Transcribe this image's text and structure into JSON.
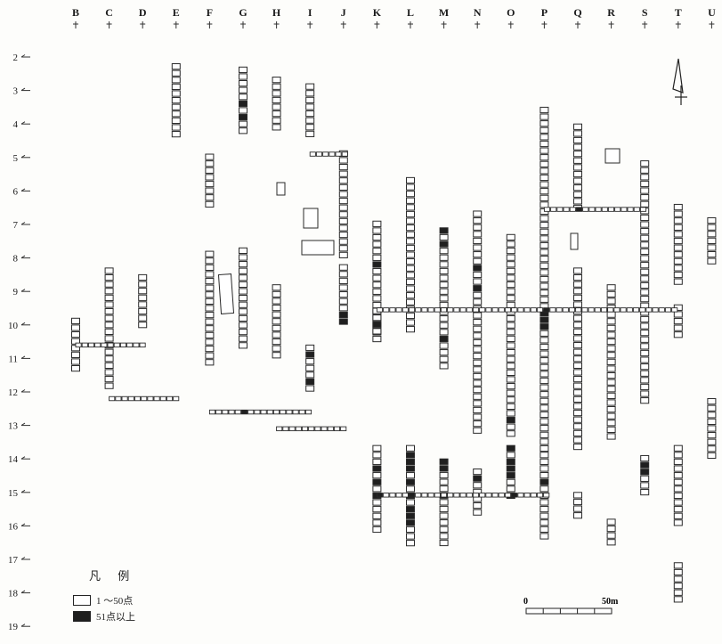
{
  "columns": [
    "B",
    "C",
    "D",
    "E",
    "F",
    "G",
    "H",
    "I",
    "J",
    "K",
    "L",
    "M",
    "N",
    "O",
    "P",
    "Q",
    "R",
    "S",
    "T",
    "U"
  ],
  "rows": [
    "2",
    "3",
    "4",
    "5",
    "6",
    "7",
    "8",
    "9",
    "10",
    "11",
    "12",
    "13",
    "14",
    "15",
    "16",
    "17",
    "18",
    "19"
  ],
  "legend": {
    "title": "凡  例",
    "items": [
      {
        "label": "1 ～50点",
        "style": "light"
      },
      {
        "label": "51点以上",
        "style": "dark"
      }
    ]
  },
  "scale_bar": {
    "start_label": "0",
    "end_label": "50m"
  },
  "north_arrow": "north-arrow",
  "trench_lines": [
    {
      "col": "K",
      "from_row": 6.9,
      "to_row": 10.4,
      "dark_rows": [
        8.1
      ]
    },
    {
      "col": "L",
      "from_row": 5.6,
      "to_row": 10.2,
      "dark_rows": []
    },
    {
      "col": "M",
      "from_row": 7.1,
      "to_row": 11.2,
      "dark_rows": [
        7.2,
        7.5,
        10.4
      ]
    },
    {
      "col": "N",
      "from_row": 6.6,
      "to_row": 13.2,
      "dark_rows": [
        8.2,
        8.4,
        8.9
      ]
    },
    {
      "col": "O",
      "from_row": 7.3,
      "to_row": 13.2,
      "dark_rows": [
        12.8
      ]
    },
    {
      "col": "P",
      "from_row": 3.5,
      "to_row": 13.7,
      "dark_rows": [
        9.6,
        9.8,
        10.1
      ]
    },
    {
      "col": "Q",
      "from_row": 4.0,
      "to_row": 6.5,
      "dark_rows": []
    },
    {
      "col": "Q",
      "from_row": 8.3,
      "to_row": 13.7,
      "dark_rows": []
    },
    {
      "col": "R",
      "from_row": 8.8,
      "to_row": 13.4,
      "dark_rows": []
    },
    {
      "col": "S",
      "from_row": 5.1,
      "to_row": 12.3,
      "dark_rows": []
    },
    {
      "col": "T",
      "from_row": 6.4,
      "to_row": 8.8,
      "dark_rows": []
    },
    {
      "col": "T",
      "from_row": 9.4,
      "to_row": 10.4,
      "dark_rows": []
    },
    {
      "col": "U",
      "from_row": 6.8,
      "to_row": 8.2,
      "dark_rows": []
    },
    {
      "col": "K",
      "from_row": 13.6,
      "to_row": 16.2,
      "dark_rows": [
        14.2,
        14.7,
        15.1
      ]
    },
    {
      "col": "L",
      "from_row": 13.6,
      "to_row": 16.6,
      "dark_rows": [
        13.8,
        14.0,
        14.2,
        14.6,
        15.1,
        15.5,
        15.7,
        15.9
      ]
    },
    {
      "col": "M",
      "from_row": 14.0,
      "to_row": 16.6,
      "dark_rows": [
        14.1,
        14.3,
        15.1
      ]
    },
    {
      "col": "N",
      "from_row": 14.3,
      "to_row": 15.6,
      "dark_rows": [
        14.6
      ]
    },
    {
      "col": "O",
      "from_row": 13.6,
      "to_row": 15.1,
      "dark_rows": [
        13.7,
        14.0,
        14.2,
        14.5,
        15.1
      ]
    },
    {
      "col": "P",
      "from_row": 13.8,
      "to_row": 16.3,
      "dark_rows": [
        14.6
      ]
    },
    {
      "col": "Q",
      "from_row": 15.0,
      "to_row": 15.8,
      "dark_rows": []
    },
    {
      "col": "R",
      "from_row": 15.8,
      "to_row": 16.6,
      "dark_rows": []
    },
    {
      "col": "S",
      "from_row": 13.9,
      "to_row": 15.0,
      "dark_rows": [
        14.1,
        14.3
      ]
    },
    {
      "col": "T",
      "from_row": 13.6,
      "to_row": 15.9,
      "dark_rows": []
    },
    {
      "col": "T",
      "from_row": 17.1,
      "to_row": 18.3,
      "dark_rows": []
    },
    {
      "col": "U",
      "from_row": 12.2,
      "to_row": 13.9,
      "dark_rows": []
    },
    {
      "col": "E",
      "from_row": 2.2,
      "to_row": 4.3,
      "dark_rows": []
    },
    {
      "col": "F",
      "from_row": 4.9,
      "to_row": 6.5,
      "dark_rows": []
    },
    {
      "col": "G",
      "from_row": 2.3,
      "to_row": 4.2,
      "dark_rows": [
        3.3,
        3.8
      ]
    },
    {
      "col": "H",
      "from_row": 2.6,
      "to_row": 4.2,
      "dark_rows": []
    },
    {
      "col": "I",
      "from_row": 2.8,
      "to_row": 4.4,
      "dark_rows": []
    },
    {
      "col": "J",
      "from_row": 4.8,
      "to_row": 7.9,
      "dark_rows": []
    },
    {
      "col": "D",
      "from_row": 8.5,
      "to_row": 10.0,
      "dark_rows": []
    },
    {
      "col": "C",
      "from_row": 8.3,
      "to_row": 11.8,
      "dark_rows": []
    },
    {
      "col": "B",
      "from_row": 9.8,
      "to_row": 11.3,
      "dark_rows": []
    },
    {
      "col": "F",
      "from_row": 7.8,
      "to_row": 11.1,
      "dark_rows": []
    },
    {
      "col": "G",
      "from_row": 7.7,
      "to_row": 10.7,
      "dark_rows": []
    },
    {
      "col": "H",
      "from_row": 8.8,
      "to_row": 11.0,
      "dark_rows": []
    },
    {
      "col": "I",
      "from_row": 10.6,
      "to_row": 11.9,
      "dark_rows": [
        10.8,
        11.7
      ]
    },
    {
      "col": "J",
      "from_row": 8.2,
      "to_row": 9.9,
      "dark_rows": [
        9.6,
        9.8
      ]
    },
    {
      "col": "K",
      "from_row": 9.5,
      "to_row": 10.2,
      "dark_rows": [
        10.0
      ]
    }
  ],
  "cross_lines": [
    {
      "row": 9.55,
      "from_col": "K",
      "to_col": "T",
      "dark_cols": [
        "P"
      ]
    },
    {
      "row": 15.08,
      "from_col": "K",
      "to_col": "P",
      "dark_cols": [
        "K",
        "L",
        "O"
      ]
    },
    {
      "row": 10.6,
      "from_col": "B",
      "to_col": "D",
      "dark_cols": []
    },
    {
      "row": 12.2,
      "from_col": "C",
      "to_col": "E",
      "dark_cols": []
    },
    {
      "row": 12.6,
      "from_col": "F",
      "to_col": "I",
      "dark_cols": [
        "G"
      ]
    },
    {
      "row": 13.1,
      "from_col": "H",
      "to_col": "J",
      "dark_cols": []
    },
    {
      "row": 6.55,
      "from_col": "P",
      "to_col": "S",
      "dark_cols": [
        "Q"
      ]
    },
    {
      "row": 4.9,
      "from_col": "I",
      "to_col": "J",
      "dark_cols": []
    }
  ]
}
